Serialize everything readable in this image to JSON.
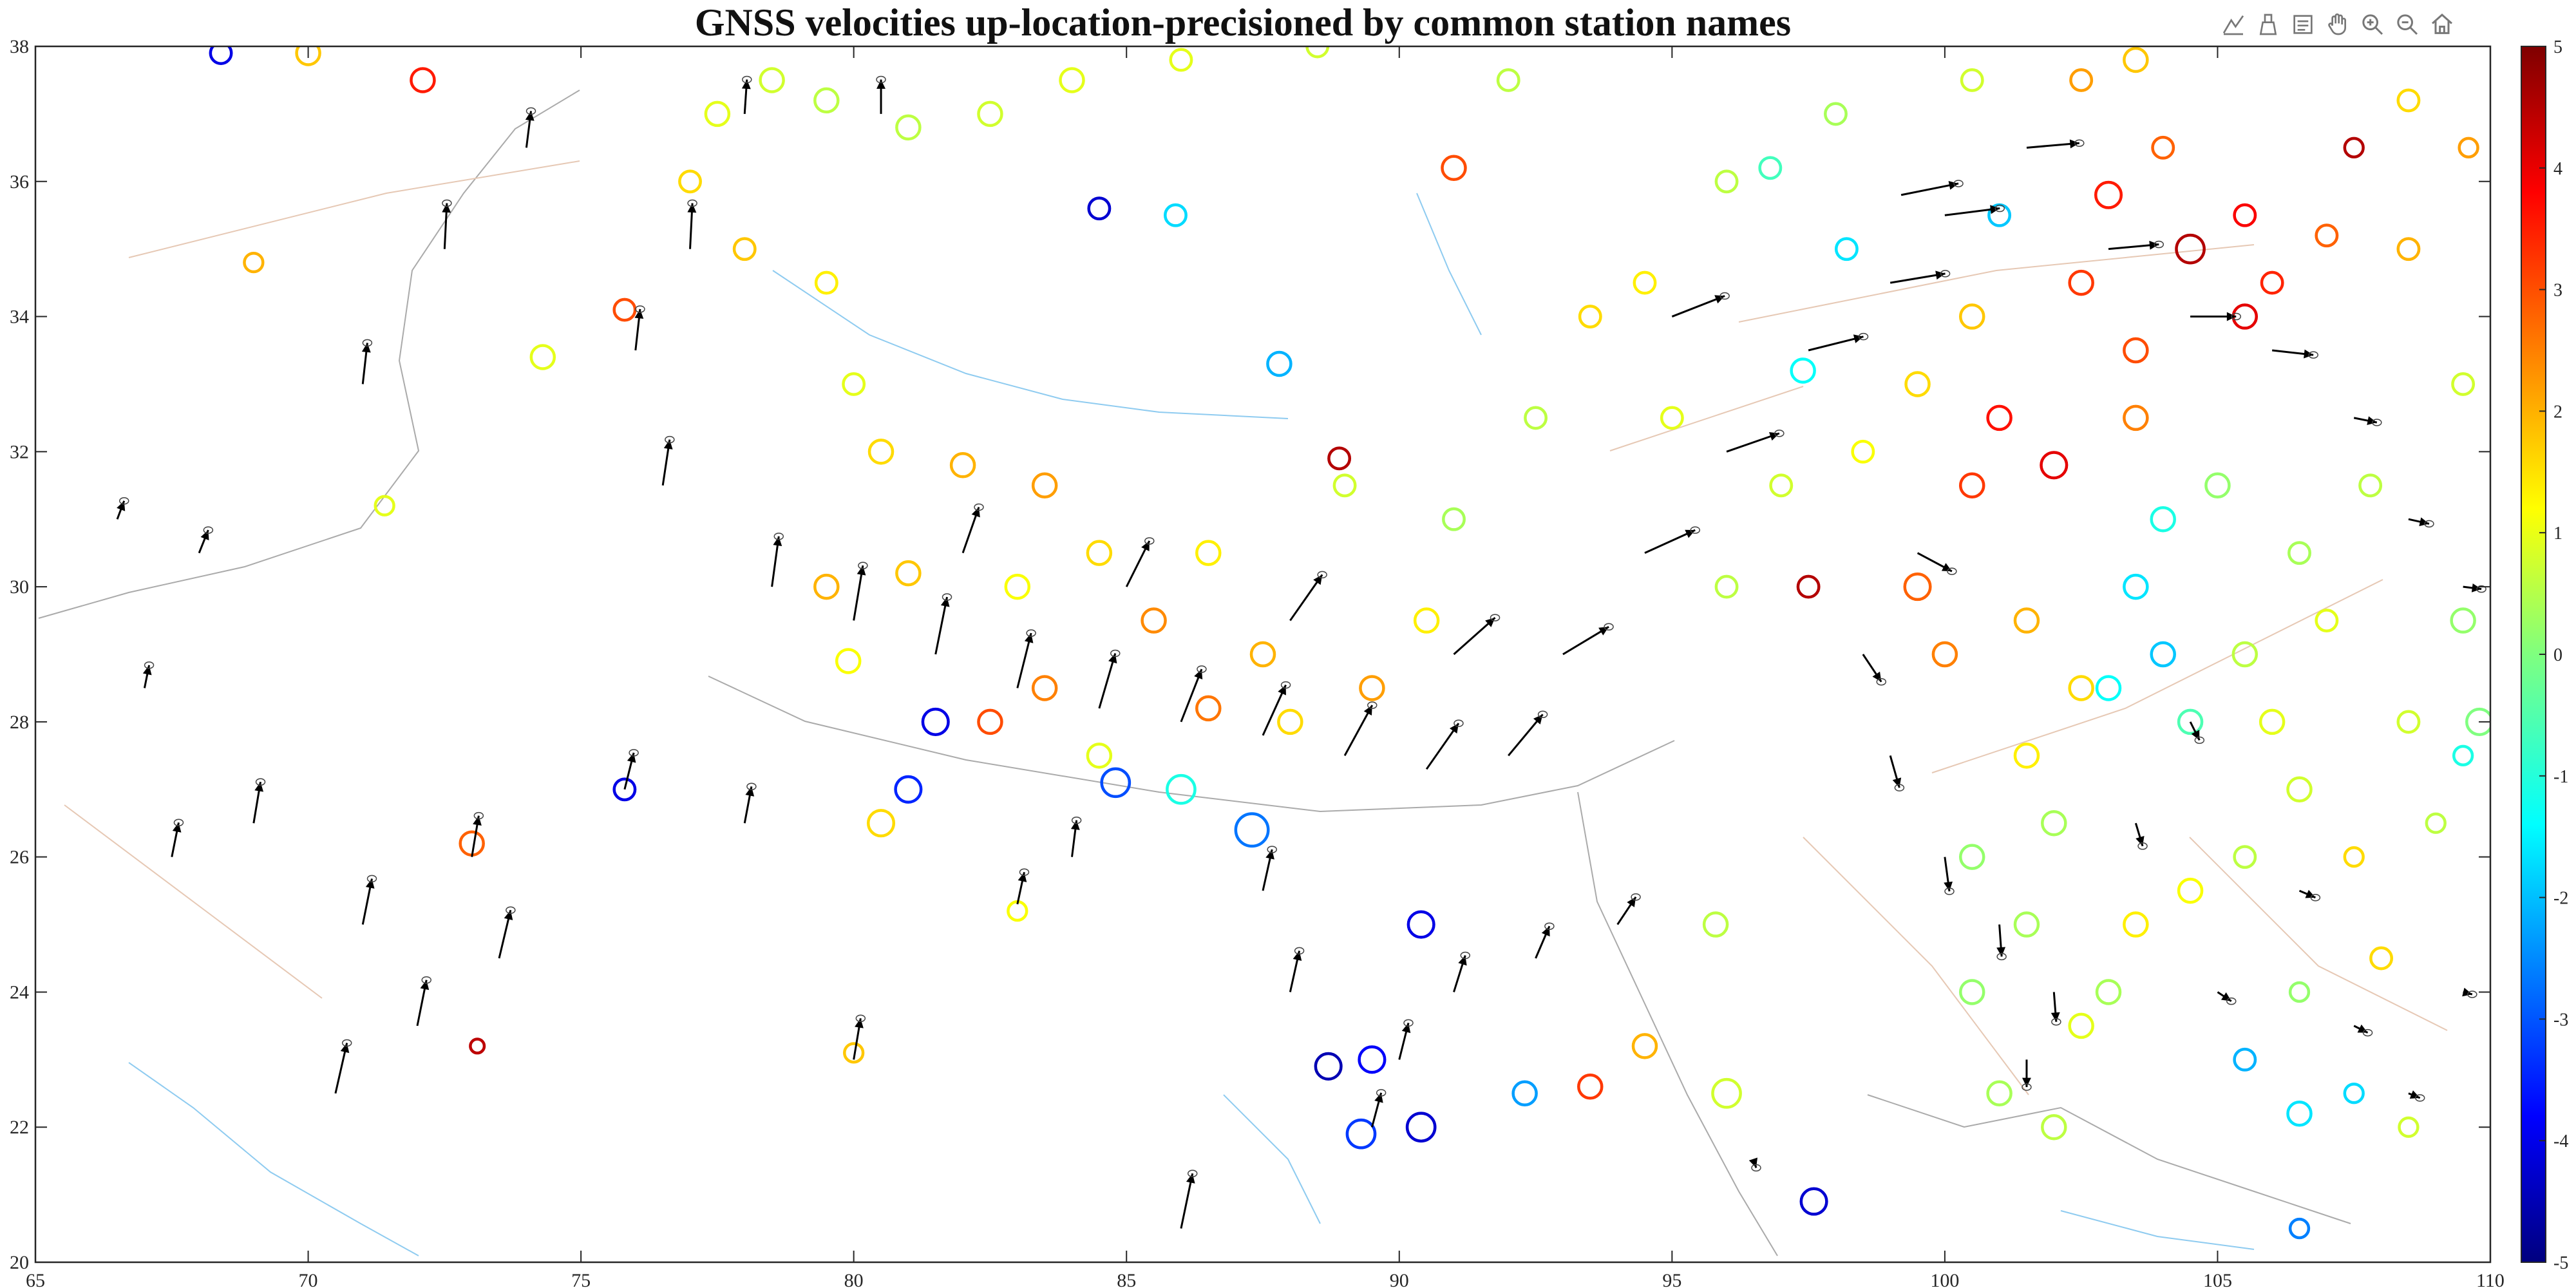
{
  "chart_data": {
    "type": "scatter",
    "title": "GNSS velocities up-location-precisioned by common station names",
    "xlim": [
      65,
      110
    ],
    "ylim": [
      20,
      38
    ],
    "xticks": [
      "65",
      "70",
      "75",
      "80",
      "85",
      "90",
      "95",
      "100",
      "105",
      "110"
    ],
    "yticks": [
      "20",
      "22",
      "24",
      "26",
      "28",
      "30",
      "32",
      "34",
      "36",
      "38"
    ],
    "colorbar": {
      "range": [
        -5,
        5
      ],
      "ticks": [
        "-5",
        "-4",
        "-3",
        "-2",
        "-1",
        "0",
        "1",
        "2",
        "3",
        "4",
        "5"
      ],
      "colormap": "jet"
    },
    "grid": false,
    "vectors": [
      [
        70.5,
        22.5,
        0.5,
        2.2
      ],
      [
        72.0,
        23.5,
        0.4,
        2.0
      ],
      [
        73.5,
        24.5,
        0.5,
        2.1
      ],
      [
        71.0,
        25.0,
        0.4,
        2.0
      ],
      [
        69.0,
        26.5,
        0.3,
        1.8
      ],
      [
        67.0,
        28.5,
        0.2,
        1.0
      ],
      [
        66.5,
        31.0,
        0.3,
        0.8
      ],
      [
        68.0,
        30.5,
        0.4,
        1.0
      ],
      [
        71.0,
        33.0,
        0.2,
        1.8
      ],
      [
        72.5,
        35.0,
        0.1,
        2.0
      ],
      [
        74.0,
        36.5,
        0.2,
        1.6
      ],
      [
        76.0,
        33.5,
        0.2,
        1.8
      ],
      [
        77.0,
        35.0,
        0.1,
        2.0
      ],
      [
        78.0,
        37.0,
        0.1,
        1.5
      ],
      [
        80.5,
        37.0,
        0.0,
        1.5
      ],
      [
        76.5,
        31.5,
        0.3,
        2.0
      ],
      [
        78.5,
        30.0,
        0.3,
        2.2
      ],
      [
        80.0,
        29.5,
        0.4,
        2.4
      ],
      [
        81.5,
        29.0,
        0.5,
        2.5
      ],
      [
        83.0,
        28.5,
        0.6,
        2.4
      ],
      [
        84.5,
        28.2,
        0.7,
        2.4
      ],
      [
        86.0,
        28.0,
        0.9,
        2.3
      ],
      [
        87.5,
        27.8,
        1.0,
        2.2
      ],
      [
        89.0,
        27.5,
        1.2,
        2.2
      ],
      [
        90.5,
        27.3,
        1.4,
        2.0
      ],
      [
        92.0,
        27.5,
        1.5,
        1.8
      ],
      [
        82.0,
        30.5,
        0.7,
        2.0
      ],
      [
        85.0,
        30.0,
        1.0,
        2.0
      ],
      [
        88.0,
        29.5,
        1.4,
        2.0
      ],
      [
        91.0,
        29.0,
        1.8,
        1.6
      ],
      [
        93.0,
        29.0,
        2.0,
        1.2
      ],
      [
        94.5,
        30.5,
        2.2,
        1.0
      ],
      [
        96.0,
        32.0,
        2.3,
        0.8
      ],
      [
        97.5,
        33.5,
        2.4,
        0.6
      ],
      [
        99.0,
        34.5,
        2.4,
        0.4
      ],
      [
        100.0,
        35.5,
        2.4,
        0.3
      ],
      [
        101.5,
        36.5,
        2.3,
        0.2
      ],
      [
        103.0,
        35.0,
        2.2,
        0.2
      ],
      [
        104.5,
        34.0,
        2.0,
        0.0
      ],
      [
        106.0,
        33.5,
        1.8,
        -0.2
      ],
      [
        107.5,
        32.5,
        1.0,
        -0.2
      ],
      [
        108.5,
        31.0,
        0.9,
        -0.2
      ],
      [
        109.5,
        30.0,
        0.8,
        -0.1
      ],
      [
        99.5,
        30.5,
        1.5,
        -0.8
      ],
      [
        98.5,
        29.0,
        0.8,
        -1.2
      ],
      [
        99.0,
        27.5,
        0.4,
        -1.4
      ],
      [
        100.0,
        26.0,
        0.2,
        -1.5
      ],
      [
        101.0,
        25.0,
        0.1,
        -1.4
      ],
      [
        102.0,
        24.0,
        0.1,
        -1.3
      ],
      [
        101.5,
        23.0,
        0.0,
        -1.2
      ],
      [
        103.5,
        26.5,
        0.3,
        -1.0
      ],
      [
        104.5,
        28.0,
        0.4,
        -0.8
      ],
      [
        105.0,
        24.0,
        0.6,
        -0.4
      ],
      [
        106.5,
        25.5,
        0.7,
        -0.3
      ],
      [
        107.5,
        23.5,
        0.6,
        -0.3
      ],
      [
        108.5,
        22.5,
        0.5,
        -0.2
      ],
      [
        109.5,
        24.0,
        0.4,
        -0.1
      ],
      [
        94.0,
        25.0,
        0.8,
        1.2
      ],
      [
        92.5,
        24.5,
        0.6,
        1.4
      ],
      [
        91.0,
        24.0,
        0.5,
        1.6
      ],
      [
        90.0,
        23.0,
        0.4,
        1.6
      ],
      [
        89.5,
        22.0,
        0.4,
        1.5
      ],
      [
        88.0,
        24.0,
        0.4,
        1.8
      ],
      [
        86.0,
        20.5,
        0.5,
        2.4
      ],
      [
        87.5,
        25.5,
        0.4,
        1.8
      ],
      [
        83.0,
        25.3,
        0.3,
        1.4
      ],
      [
        84.0,
        26.0,
        0.2,
        1.6
      ],
      [
        80.0,
        23.0,
        0.3,
        1.8
      ],
      [
        78.0,
        26.5,
        0.3,
        1.6
      ],
      [
        75.8,
        27.0,
        0.4,
        1.6
      ],
      [
        73.0,
        26.0,
        0.3,
        1.8
      ],
      [
        67.5,
        26.0,
        0.3,
        1.5
      ],
      [
        96.5,
        21.5,
        0.1,
        -0.3
      ],
      [
        99.2,
        35.8,
        2.5,
        0.5
      ],
      [
        95.0,
        34.0,
        2.3,
        0.9
      ]
    ],
    "circles": [
      [
        104.5,
        35.0,
        4.5,
        1.2
      ],
      [
        105.5,
        34.0,
        4.0,
        1.0
      ],
      [
        103.0,
        35.8,
        3.5,
        1.1
      ],
      [
        105.5,
        35.5,
        3.8,
        0.9
      ],
      [
        102.5,
        34.5,
        3.2,
        1.0
      ],
      [
        103.5,
        33.5,
        3.0,
        1.0
      ],
      [
        101.0,
        32.5,
        3.6,
        1.0
      ],
      [
        100.5,
        31.5,
        3.2,
        1.0
      ],
      [
        102.0,
        31.8,
        4.0,
        1.1
      ],
      [
        103.5,
        32.5,
        2.5,
        1.0
      ],
      [
        106.0,
        34.5,
        3.4,
        0.9
      ],
      [
        107.0,
        35.2,
        2.8,
        0.9
      ],
      [
        108.5,
        35.0,
        2.0,
        0.9
      ],
      [
        104.0,
        36.5,
        2.8,
        0.9
      ],
      [
        102.5,
        37.5,
        2.2,
        0.9
      ],
      [
        100.5,
        34.0,
        1.8,
        1.0
      ],
      [
        99.5,
        33.0,
        1.6,
        1.0
      ],
      [
        98.5,
        32.0,
        1.2,
        0.9
      ],
      [
        97.0,
        31.5,
        0.8,
        0.9
      ],
      [
        96.0,
        30.0,
        0.6,
        0.9
      ],
      [
        95.0,
        32.5,
        1.0,
        0.9
      ],
      [
        94.5,
        34.5,
        1.4,
        0.9
      ],
      [
        96.0,
        36.0,
        0.6,
        0.9
      ],
      [
        98.0,
        37.0,
        0.4,
        0.9
      ],
      [
        100.5,
        37.5,
        0.8,
        0.9
      ],
      [
        99.5,
        30.0,
        2.8,
        1.1
      ],
      [
        100.0,
        29.0,
        2.5,
        1.0
      ],
      [
        101.5,
        29.5,
        2.0,
        1.0
      ],
      [
        102.5,
        28.5,
        1.6,
        1.0
      ],
      [
        101.5,
        27.5,
        1.4,
        1.0
      ],
      [
        102.0,
        26.5,
        0.4,
        1.0
      ],
      [
        100.5,
        26.0,
        0.2,
        1.0
      ],
      [
        101.5,
        25.0,
        0.4,
        1.0
      ],
      [
        100.5,
        24.0,
        0.2,
        1.0
      ],
      [
        102.5,
        23.5,
        1.0,
        1.0
      ],
      [
        101.0,
        22.5,
        0.4,
        1.0
      ],
      [
        102.0,
        22.0,
        0.6,
        1.0
      ],
      [
        103.5,
        30.0,
        -1.5,
        1.0
      ],
      [
        104.0,
        29.0,
        -1.8,
        1.0
      ],
      [
        103.0,
        28.5,
        -1.2,
        1.0
      ],
      [
        104.5,
        28.0,
        -0.5,
        1.0
      ],
      [
        105.5,
        29.0,
        0.6,
        1.0
      ],
      [
        106.0,
        28.0,
        1.0,
        1.0
      ],
      [
        106.5,
        27.0,
        0.8,
        1.0
      ],
      [
        105.5,
        26.0,
        0.6,
        0.9
      ],
      [
        104.5,
        25.5,
        1.2,
        1.0
      ],
      [
        103.5,
        25.0,
        1.4,
        1.0
      ],
      [
        103.0,
        24.0,
        0.4,
        1.0
      ],
      [
        104.0,
        31.0,
        -1.0,
        1.0
      ],
      [
        105.0,
        31.5,
        0.2,
        1.0
      ],
      [
        106.5,
        30.5,
        0.4,
        0.9
      ],
      [
        107.0,
        29.5,
        1.0,
        0.9
      ],
      [
        108.5,
        28.0,
        0.8,
        0.9
      ],
      [
        109.5,
        27.5,
        -1.0,
        0.8
      ],
      [
        107.5,
        26.0,
        1.6,
        0.8
      ],
      [
        109.0,
        26.5,
        0.6,
        0.8
      ],
      [
        106.5,
        24.0,
        0.2,
        0.8
      ],
      [
        107.5,
        22.5,
        -1.6,
        0.8
      ],
      [
        108.5,
        22.0,
        0.8,
        0.8
      ],
      [
        106.5,
        20.5,
        -2.5,
        0.8
      ],
      [
        77.5,
        37.0,
        1.0,
        1.0
      ],
      [
        78.5,
        37.5,
        0.8,
        1.0
      ],
      [
        79.5,
        37.2,
        0.6,
        1.0
      ],
      [
        81.0,
        36.8,
        0.6,
        1.0
      ],
      [
        82.5,
        37.0,
        0.8,
        1.0
      ],
      [
        84.0,
        37.5,
        1.0,
        1.0
      ],
      [
        77.0,
        36.0,
        1.6,
        0.9
      ],
      [
        78.0,
        35.0,
        1.8,
        0.9
      ],
      [
        79.5,
        34.5,
        1.4,
        0.9
      ],
      [
        80.0,
        33.0,
        1.0,
        0.9
      ],
      [
        80.5,
        32.0,
        1.6,
        1.0
      ],
      [
        82.0,
        31.8,
        2.0,
        1.0
      ],
      [
        83.5,
        31.5,
        2.2,
        1.0
      ],
      [
        84.5,
        30.5,
        1.6,
        1.0
      ],
      [
        83.0,
        30.0,
        1.2,
        1.0
      ],
      [
        81.0,
        30.2,
        1.8,
        1.0
      ],
      [
        79.5,
        30.0,
        2.0,
        1.0
      ],
      [
        85.5,
        29.5,
        2.4,
        1.0
      ],
      [
        86.5,
        30.5,
        1.4,
        1.0
      ],
      [
        87.5,
        29.0,
        2.0,
        1.0
      ],
      [
        89.5,
        28.5,
        2.2,
        1.0
      ],
      [
        90.5,
        29.5,
        1.4,
        1.0
      ],
      [
        89.0,
        31.5,
        0.8,
        0.9
      ],
      [
        91.0,
        31.0,
        0.4,
        0.9
      ],
      [
        92.5,
        32.5,
        0.6,
        0.9
      ],
      [
        93.5,
        34.0,
        1.6,
        0.9
      ],
      [
        92.0,
        37.5,
        0.6,
        0.9
      ],
      [
        88.5,
        38.0,
        0.8,
        0.9
      ],
      [
        86.0,
        37.8,
        1.0,
        0.9
      ],
      [
        80.5,
        26.5,
        1.6,
        1.1
      ],
      [
        81.0,
        27.0,
        -3.4,
        1.1
      ],
      [
        84.8,
        27.1,
        -3.0,
        1.2
      ],
      [
        86.0,
        27.0,
        -1.0,
        1.2
      ],
      [
        87.3,
        26.4,
        -2.6,
        1.4
      ],
      [
        81.5,
        28.0,
        -4.0,
        1.1
      ],
      [
        82.5,
        28.0,
        3.0,
        1.0
      ],
      [
        83.5,
        28.5,
        2.5,
        1.0
      ],
      [
        84.5,
        27.5,
        1.0,
        1.0
      ],
      [
        86.5,
        28.2,
        2.6,
        1.0
      ],
      [
        88.0,
        28.0,
        1.6,
        1.0
      ],
      [
        89.5,
        23.0,
        -3.8,
        1.1
      ],
      [
        89.3,
        21.9,
        -3.2,
        1.2
      ],
      [
        90.4,
        22.0,
        -4.2,
        1.2
      ],
      [
        90.4,
        25.0,
        -4.0,
        1.1
      ],
      [
        88.7,
        22.9,
        -4.5,
        1.1
      ],
      [
        93.5,
        22.6,
        3.2,
        1.0
      ],
      [
        94.5,
        23.2,
        2.0,
        1.0
      ],
      [
        96.0,
        22.5,
        0.8,
        1.2
      ],
      [
        97.6,
        20.9,
        -4.2,
        1.1
      ],
      [
        92.3,
        22.5,
        -2.2,
        1.0
      ],
      [
        95.8,
        25.0,
        0.6,
        1.0
      ],
      [
        73.0,
        26.2,
        2.8,
        1.0
      ],
      [
        75.8,
        27.0,
        -4.0,
        0.9
      ],
      [
        80.0,
        23.1,
        1.8,
        0.8
      ],
      [
        83.0,
        25.2,
        1.2,
        0.8
      ],
      [
        79.9,
        28.9,
        1.2,
        1.0
      ],
      [
        74.3,
        33.4,
        1.0,
        1.0
      ],
      [
        75.8,
        34.1,
        3.0,
        0.9
      ],
      [
        73.1,
        23.2,
        4.4,
        0.6
      ],
      [
        71.4,
        31.2,
        1.0,
        0.8
      ],
      [
        69.0,
        34.8,
        2.0,
        0.8
      ],
      [
        72.1,
        37.5,
        3.5,
        1.0
      ],
      [
        68.4,
        37.9,
        -4.0,
        0.9
      ],
      [
        70.0,
        37.9,
        1.8,
        1.0
      ],
      [
        84.5,
        35.6,
        -4.2,
        0.9
      ],
      [
        85.9,
        35.5,
        -1.6,
        0.9
      ],
      [
        87.8,
        33.3,
        -2.0,
        1.0
      ],
      [
        88.9,
        31.9,
        4.5,
        0.9
      ],
      [
        91.0,
        36.2,
        3.0,
        1.0
      ],
      [
        97.5,
        30.0,
        4.5,
        0.9
      ],
      [
        109.5,
        29.5,
        0.2,
        1.0
      ],
      [
        109.8,
        28.0,
        0.0,
        1.1
      ],
      [
        107.8,
        31.5,
        0.6,
        0.9
      ],
      [
        109.5,
        33.0,
        0.8,
        0.9
      ],
      [
        108.5,
        37.2,
        1.6,
        0.9
      ],
      [
        107.5,
        36.5,
        4.5,
        0.8
      ],
      [
        109.6,
        36.5,
        2.2,
        0.8
      ],
      [
        97.4,
        33.2,
        -1.2,
        1.0
      ],
      [
        98.2,
        35.0,
        -1.5,
        0.9
      ],
      [
        96.8,
        36.2,
        -0.6,
        0.9
      ],
      [
        101.0,
        35.5,
        -1.8,
        0.9
      ],
      [
        103.5,
        37.8,
        1.8,
        1.0
      ],
      [
        108.0,
        24.5,
        1.6,
        0.9
      ],
      [
        106.5,
        22.2,
        -1.5,
        1.0
      ],
      [
        105.5,
        23.0,
        -2.0,
        0.9
      ]
    ]
  }
}
